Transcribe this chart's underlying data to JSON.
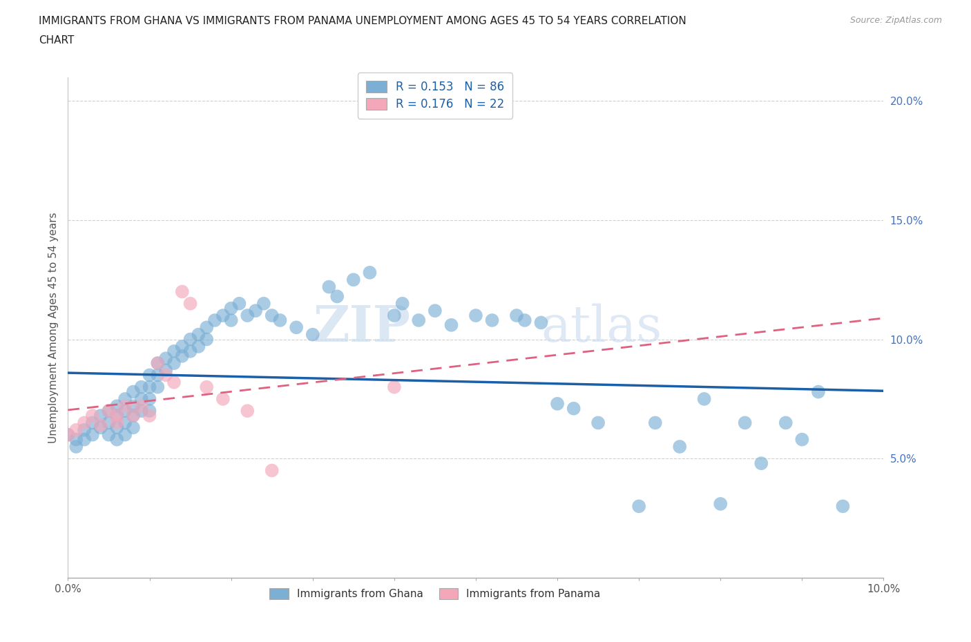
{
  "title_line1": "IMMIGRANTS FROM GHANA VS IMMIGRANTS FROM PANAMA UNEMPLOYMENT AMONG AGES 45 TO 54 YEARS CORRELATION",
  "title_line2": "CHART",
  "source_text": "Source: ZipAtlas.com",
  "ylabel": "Unemployment Among Ages 45 to 54 years",
  "xlim": [
    0.0,
    0.1
  ],
  "ylim": [
    0.0,
    0.21
  ],
  "xticks": [
    0.0,
    0.01,
    0.02,
    0.03,
    0.04,
    0.05,
    0.06,
    0.07,
    0.08,
    0.09,
    0.1
  ],
  "xtick_labels_show": [
    0.0,
    0.05,
    0.1
  ],
  "yticks": [
    0.0,
    0.05,
    0.1,
    0.15,
    0.2
  ],
  "ytick_labels": [
    "",
    "5.0%",
    "10.0%",
    "15.0%",
    "20.0%"
  ],
  "bottom_xtick_labels": [
    "0.0%",
    "",
    "",
    "",
    "",
    "",
    "",
    "",
    "",
    "",
    "10.0%"
  ],
  "ghana_color": "#7bafd4",
  "panama_color": "#f4a7b9",
  "ghana_line_color": "#1a5fa8",
  "panama_line_color": "#e06080",
  "legend_text_color": "#1a5fa8",
  "legend_R_ghana": "R = 0.153",
  "legend_N_ghana": "N = 86",
  "legend_R_panama": "R = 0.176",
  "legend_N_panama": "N = 22",
  "ghana_label": "Immigrants from Ghana",
  "panama_label": "Immigrants from Panama",
  "ghana_x": [
    0.0,
    0.001,
    0.001,
    0.002,
    0.002,
    0.003,
    0.003,
    0.004,
    0.004,
    0.005,
    0.005,
    0.005,
    0.006,
    0.006,
    0.006,
    0.006,
    0.007,
    0.007,
    0.007,
    0.007,
    0.008,
    0.008,
    0.008,
    0.008,
    0.009,
    0.009,
    0.009,
    0.01,
    0.01,
    0.01,
    0.01,
    0.011,
    0.011,
    0.011,
    0.012,
    0.012,
    0.013,
    0.013,
    0.014,
    0.014,
    0.015,
    0.015,
    0.016,
    0.016,
    0.017,
    0.017,
    0.018,
    0.019,
    0.02,
    0.02,
    0.021,
    0.022,
    0.023,
    0.024,
    0.025,
    0.026,
    0.028,
    0.03,
    0.032,
    0.033,
    0.035,
    0.037,
    0.04,
    0.041,
    0.043,
    0.045,
    0.047,
    0.05,
    0.052,
    0.055,
    0.056,
    0.058,
    0.06,
    0.062,
    0.065,
    0.07,
    0.072,
    0.075,
    0.078,
    0.08,
    0.083,
    0.085,
    0.088,
    0.09,
    0.092,
    0.095
  ],
  "ghana_y": [
    0.06,
    0.058,
    0.055,
    0.062,
    0.058,
    0.065,
    0.06,
    0.068,
    0.063,
    0.07,
    0.065,
    0.06,
    0.072,
    0.068,
    0.063,
    0.058,
    0.075,
    0.07,
    0.065,
    0.06,
    0.078,
    0.072,
    0.068,
    0.063,
    0.08,
    0.075,
    0.07,
    0.085,
    0.08,
    0.075,
    0.07,
    0.09,
    0.085,
    0.08,
    0.092,
    0.087,
    0.095,
    0.09,
    0.097,
    0.093,
    0.1,
    0.095,
    0.102,
    0.097,
    0.105,
    0.1,
    0.108,
    0.11,
    0.113,
    0.108,
    0.115,
    0.11,
    0.112,
    0.115,
    0.11,
    0.108,
    0.105,
    0.102,
    0.122,
    0.118,
    0.125,
    0.128,
    0.11,
    0.115,
    0.108,
    0.112,
    0.106,
    0.11,
    0.108,
    0.11,
    0.108,
    0.107,
    0.073,
    0.071,
    0.065,
    0.03,
    0.065,
    0.055,
    0.075,
    0.031,
    0.065,
    0.048,
    0.065,
    0.058,
    0.078,
    0.03
  ],
  "panama_x": [
    0.0,
    0.001,
    0.002,
    0.003,
    0.004,
    0.005,
    0.006,
    0.006,
    0.007,
    0.008,
    0.009,
    0.01,
    0.011,
    0.012,
    0.013,
    0.014,
    0.015,
    0.017,
    0.019,
    0.022,
    0.025,
    0.04
  ],
  "panama_y": [
    0.06,
    0.062,
    0.065,
    0.068,
    0.064,
    0.07,
    0.068,
    0.065,
    0.072,
    0.068,
    0.072,
    0.068,
    0.09,
    0.085,
    0.082,
    0.12,
    0.115,
    0.08,
    0.075,
    0.07,
    0.045,
    0.08
  ],
  "watermark_zip": "ZIP",
  "watermark_atlas": "atlas",
  "background_color": "#ffffff",
  "grid_color": "#d0d0d0"
}
